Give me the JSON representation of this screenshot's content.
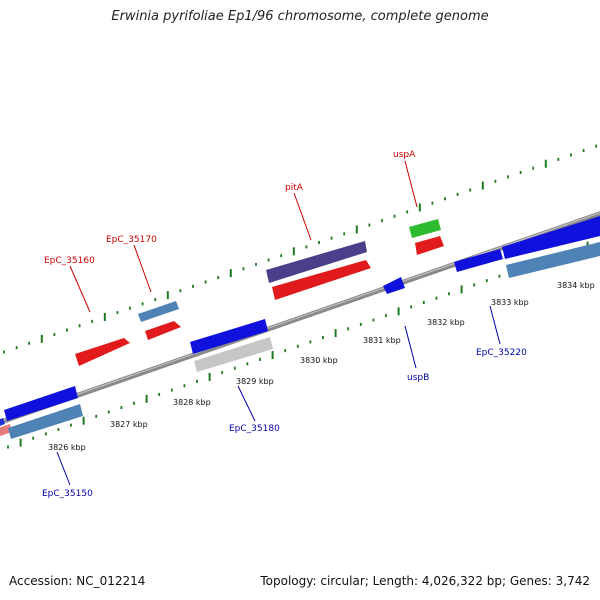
{
  "title": "Erwinia pyrifoliae Ep1/96 chromosome, complete genome",
  "footer": {
    "accession": "Accession: NC_012214",
    "summary": "Topology: circular; Length: 4,026,322 bp; Genes: 3,742"
  },
  "colors": {
    "backbone": "#888888",
    "forward_label": "#cc0000",
    "reverse_label": "#0000aa",
    "tick": "#1e7a1e"
  },
  "ticks": [
    "3826 kbp",
    "3827 kbp",
    "3828 kbp",
    "3829 kbp",
    "3830 kbp",
    "3831 kbp",
    "3832 kbp",
    "3833 kbp",
    "3834 kbp"
  ],
  "labels": {
    "forward": [
      "EpC_35160",
      "EpC_35170",
      "pitA",
      "uspA"
    ],
    "reverse": [
      "EpC_35150",
      "EpC_35180",
      "uspB",
      "EpC_35220"
    ]
  }
}
